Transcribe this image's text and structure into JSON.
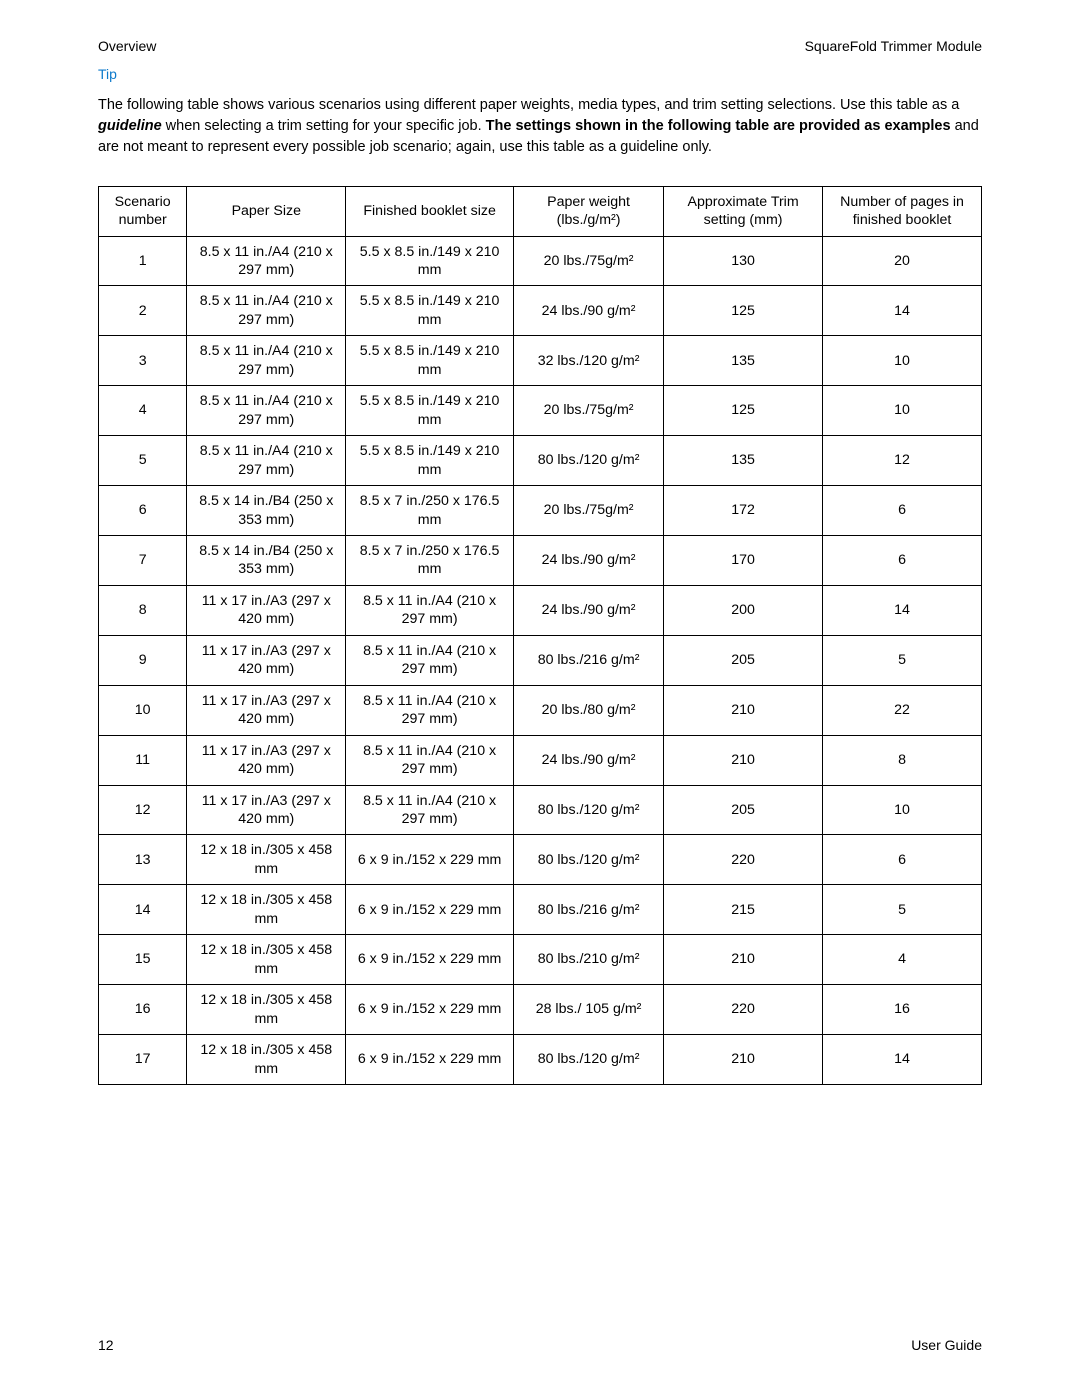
{
  "header": {
    "left": "Overview",
    "right": "SquareFold Trimmer Module"
  },
  "tip_label": "Tip",
  "intro": {
    "part1": "The following table shows various scenarios using different paper weights, media types, and trim setting selections. Use this table as a ",
    "guideline": "guideline",
    "part2": " when selecting a trim setting for your specific job. ",
    "bold": "The settings shown in the following table are provided as examples",
    "part3": " and are not meant to represent every possible job scenario; again, use this table as a guideline only."
  },
  "table": {
    "columns": [
      "Scenario number",
      "Paper Size",
      "Finished booklet size",
      "Paper weight (lbs./g/m²)",
      "Approximate Trim setting (mm)",
      "Number of pages in finished booklet"
    ],
    "rows": [
      [
        "1",
        "8.5 x 11 in./A4 (210 x 297 mm)",
        "5.5 x 8.5 in./149 x 210 mm",
        "20 lbs./75g/m²",
        "130",
        "20"
      ],
      [
        "2",
        "8.5 x 11 in./A4 (210 x 297 mm)",
        "5.5 x 8.5 in./149 x 210 mm",
        "24 lbs./90 g/m²",
        "125",
        "14"
      ],
      [
        "3",
        "8.5 x 11 in./A4 (210 x 297 mm)",
        "5.5 x 8.5 in./149 x 210 mm",
        "32 lbs./120 g/m²",
        "135",
        "10"
      ],
      [
        "4",
        "8.5 x 11 in./A4 (210 x 297 mm)",
        "5.5 x 8.5 in./149 x 210 mm",
        "20 lbs./75g/m²",
        "125",
        "10"
      ],
      [
        "5",
        "8.5 x 11 in./A4 (210 x 297 mm)",
        "5.5 x 8.5 in./149 x 210 mm",
        "80 lbs./120 g/m²",
        "135",
        "12"
      ],
      [
        "6",
        "8.5 x 14 in./B4 (250 x 353 mm)",
        "8.5 x 7 in./250 x 176.5 mm",
        "20 lbs./75g/m²",
        "172",
        "6"
      ],
      [
        "7",
        "8.5 x 14 in./B4 (250 x 353 mm)",
        "8.5 x 7 in./250 x 176.5 mm",
        "24 lbs./90 g/m²",
        "170",
        "6"
      ],
      [
        "8",
        "11 x 17 in./A3 (297 x 420 mm)",
        "8.5 x 11 in./A4 (210 x 297 mm)",
        "24 lbs./90 g/m²",
        "200",
        "14"
      ],
      [
        "9",
        "11 x 17 in./A3 (297 x 420 mm)",
        "8.5 x 11 in./A4 (210 x 297 mm)",
        "80 lbs./216 g/m²",
        "205",
        "5"
      ],
      [
        "10",
        "11 x 17 in./A3 (297 x 420 mm)",
        "8.5 x 11 in./A4 (210 x 297 mm)",
        "20 lbs./80 g/m²",
        "210",
        "22"
      ],
      [
        "11",
        "11 x 17 in./A3 (297 x 420 mm)",
        "8.5 x 11 in./A4 (210 x 297 mm)",
        "24 lbs./90 g/m²",
        "210",
        "8"
      ],
      [
        "12",
        "11 x 17 in./A3 (297 x 420 mm)",
        "8.5 x 11 in./A4 (210 x 297 mm)",
        "80 lbs./120 g/m²",
        "205",
        "10"
      ],
      [
        "13",
        "12 x 18 in./305 x 458 mm",
        "6 x 9 in./152 x 229 mm",
        "80 lbs./120 g/m²",
        "220",
        "6"
      ],
      [
        "14",
        "12 x 18 in./305 x 458 mm",
        "6 x 9 in./152 x 229 mm",
        "80 lbs./216 g/m²",
        "215",
        "5"
      ],
      [
        "15",
        "12 x 18 in./305 x 458 mm",
        "6 x 9 in./152 x 229 mm",
        "80 lbs./210 g/m²",
        "210",
        "4"
      ],
      [
        "16",
        "12 x 18 in./305 x 458 mm",
        "6 x 9 in./152 x 229 mm",
        "28 lbs./ 105 g/m²",
        "220",
        "16"
      ],
      [
        "17",
        "12 x 18 in./305 x 458 mm",
        "6 x 9 in./152 x 229 mm",
        "80 lbs./120 g/m²",
        "210",
        "14"
      ]
    ]
  },
  "footer": {
    "page": "12",
    "label": "User Guide"
  },
  "styling": {
    "body_bg": "#ffffff",
    "text_color": "#000000",
    "tip_color": "#0d7acb",
    "border_color": "#000000",
    "font_family": "Arial, Helvetica, sans-serif",
    "base_fontsize": 14.5,
    "table_fontsize": 14.2,
    "col_widths_pct": [
      10,
      18,
      19,
      17,
      18,
      18
    ]
  }
}
